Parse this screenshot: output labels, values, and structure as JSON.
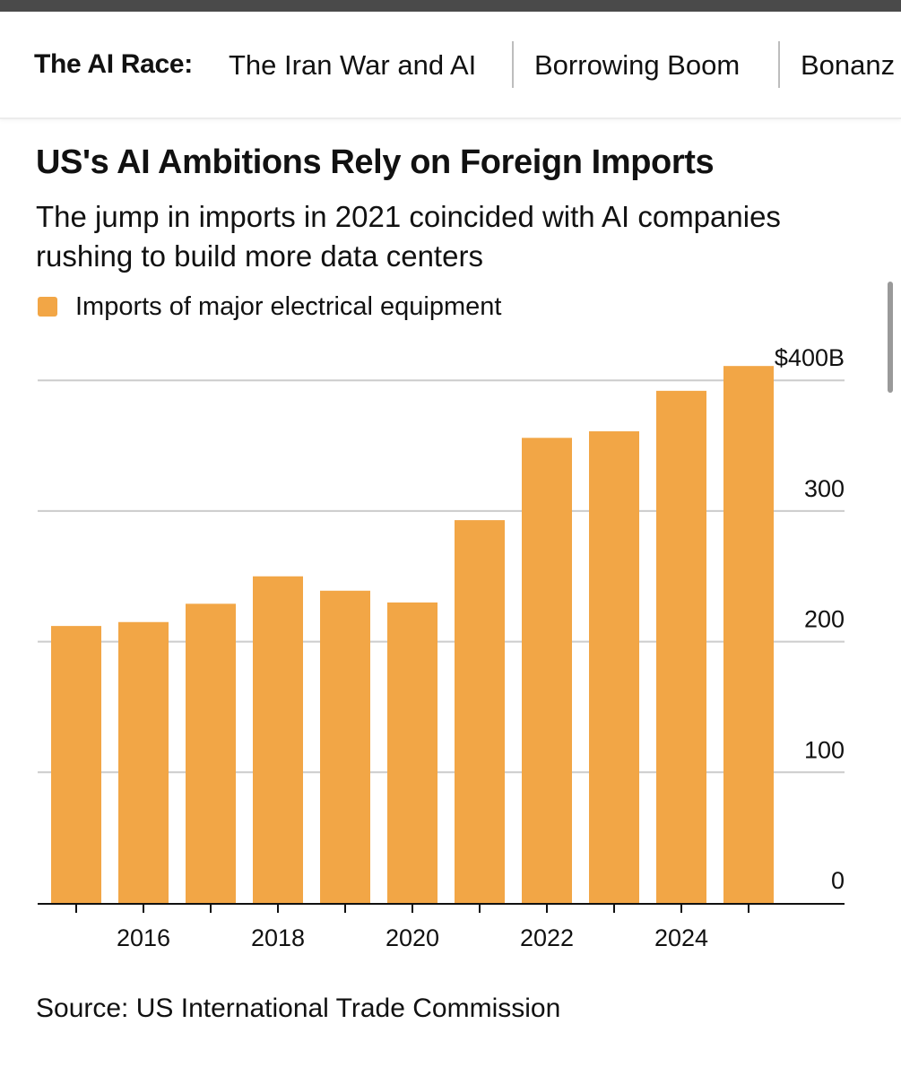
{
  "nav": {
    "label": "The AI Race:",
    "items": [
      {
        "label": "The Iran War and AI"
      },
      {
        "label": "Borrowing Boom"
      },
      {
        "label": "Bonanz"
      }
    ]
  },
  "chart_data": {
    "type": "bar",
    "title": "US's AI Ambitions Rely on Foreign Imports",
    "subtitle": "The jump in imports in 2021 coincided with AI companies rushing to build more data centers",
    "legend": [
      {
        "name": "Imports of major electrical equipment",
        "color": "#f2a646"
      }
    ],
    "legend_placement": "top-left",
    "categories": [
      "2015",
      "2016",
      "2017",
      "2018",
      "2019",
      "2020",
      "2021",
      "2022",
      "2023",
      "2024",
      "2025"
    ],
    "values": [
      212,
      215,
      229,
      250,
      239,
      230,
      293,
      356,
      361,
      392,
      411
    ],
    "x_tick_labels": [
      "2016",
      "2018",
      "2020",
      "2022",
      "2024"
    ],
    "y_ticks": [
      {
        "value": 0,
        "label": "0"
      },
      {
        "value": 100,
        "label": "100"
      },
      {
        "value": 200,
        "label": "200"
      },
      {
        "value": 300,
        "label": "300"
      },
      {
        "value": 400,
        "label": "$400B"
      }
    ],
    "ylim": [
      0,
      420
    ],
    "grid": true,
    "y_axis_side": "right",
    "xlabel": "",
    "ylabel": "",
    "source": "Source: US International Trade Commission"
  },
  "colors": {
    "bar": "#f2a646",
    "grid": "#cccccc",
    "axis": "#111111"
  }
}
